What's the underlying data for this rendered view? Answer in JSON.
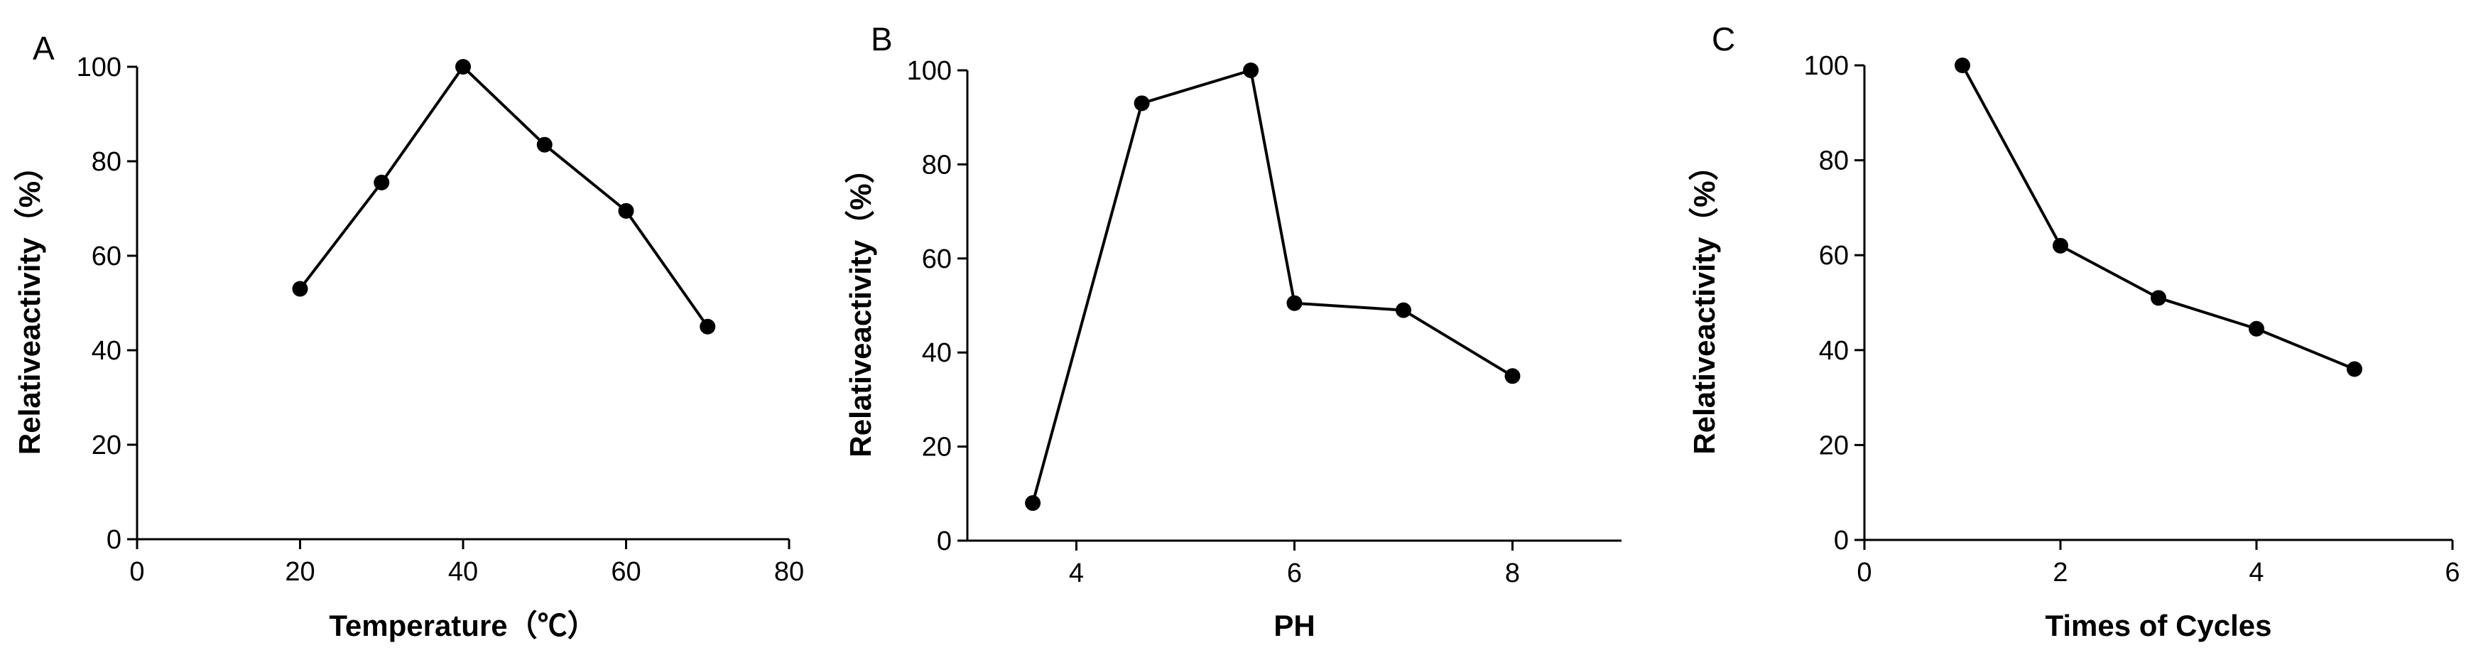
{
  "chart_data": [
    {
      "type": "line",
      "panel_label": "A",
      "xlabel": "Temperature（℃）",
      "ylabel": "Relativeactivity（%）",
      "xlim": [
        0,
        80
      ],
      "ylim": [
        0,
        100
      ],
      "x_ticks": [
        0,
        20,
        40,
        60,
        80
      ],
      "y_ticks": [
        0,
        20,
        40,
        60,
        80,
        100
      ],
      "grid": false,
      "series": [
        {
          "x": [
            20,
            30,
            40,
            50,
            60,
            70
          ],
          "y": [
            53,
            75.5,
            100,
            83.5,
            69.5,
            45
          ]
        }
      ],
      "color": "#000000"
    },
    {
      "type": "line",
      "panel_label": "B",
      "xlabel": "PH",
      "ylabel": "Relativeactivity（%）",
      "xlim": [
        3,
        9
      ],
      "ylim": [
        0,
        100
      ],
      "x_ticks": [
        4,
        6,
        8
      ],
      "y_ticks": [
        0,
        20,
        40,
        60,
        80,
        100
      ],
      "grid": false,
      "series": [
        {
          "x": [
            3.6,
            4.6,
            5.6,
            6.0,
            7.0,
            8.0
          ],
          "y": [
            8,
            93,
            100,
            50.5,
            49,
            35
          ]
        }
      ],
      "color": "#000000"
    },
    {
      "type": "line",
      "panel_label": "C",
      "xlabel": "Times of Cycles",
      "ylabel": "Relativeactivity（%）",
      "xlim": [
        0,
        6
      ],
      "ylim": [
        0,
        100
      ],
      "x_ticks": [
        0,
        2,
        4,
        6
      ],
      "y_ticks": [
        0,
        20,
        40,
        60,
        80,
        100
      ],
      "grid": false,
      "series": [
        {
          "x": [
            1,
            2,
            3,
            4,
            5
          ],
          "y": [
            100,
            62,
            51,
            44.5,
            36
          ]
        }
      ],
      "color": "#000000"
    }
  ]
}
